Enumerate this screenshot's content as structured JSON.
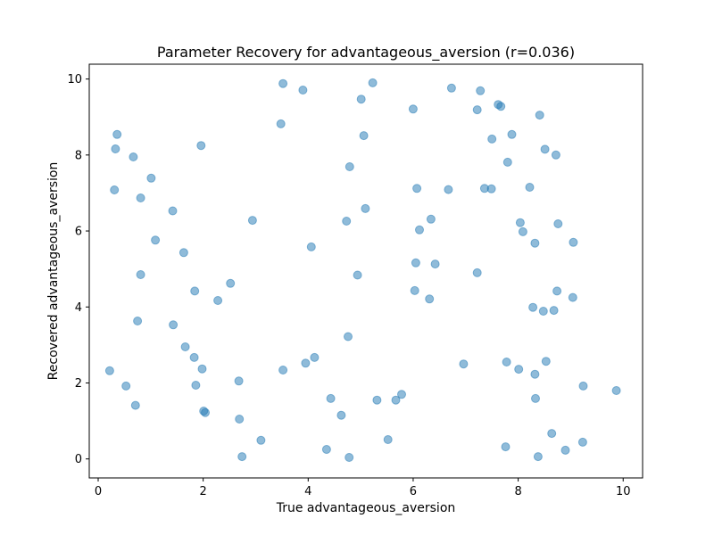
{
  "chart_data": {
    "type": "scatter",
    "title": "Parameter Recovery for advantageous_aversion (r=0.036)",
    "xlabel": "True advantageous_aversion",
    "ylabel": "Recovered advantageous_aversion",
    "xlim": [
      -0.17,
      10.37
    ],
    "ylim": [
      -0.5,
      10.39
    ],
    "xticks": [
      0,
      2,
      4,
      6,
      8,
      10
    ],
    "yticks": [
      0,
      2,
      4,
      6,
      8,
      10
    ],
    "grid": false,
    "marker_color": "#1f77b4",
    "marker_alpha": 0.5,
    "points": [
      [
        0.22,
        2.32
      ],
      [
        0.31,
        7.08
      ],
      [
        0.33,
        8.16
      ],
      [
        0.36,
        8.54
      ],
      [
        0.53,
        1.92
      ],
      [
        0.67,
        7.95
      ],
      [
        0.71,
        1.41
      ],
      [
        0.75,
        3.63
      ],
      [
        0.81,
        4.85
      ],
      [
        0.81,
        6.87
      ],
      [
        1.01,
        7.39
      ],
      [
        1.09,
        5.76
      ],
      [
        1.42,
        6.53
      ],
      [
        1.43,
        3.53
      ],
      [
        1.63,
        5.43
      ],
      [
        1.66,
        2.95
      ],
      [
        1.83,
        2.67
      ],
      [
        1.84,
        4.42
      ],
      [
        1.86,
        1.94
      ],
      [
        1.96,
        8.25
      ],
      [
        1.98,
        2.37
      ],
      [
        2.01,
        1.26
      ],
      [
        2.04,
        1.22
      ],
      [
        2.28,
        4.17
      ],
      [
        2.52,
        4.62
      ],
      [
        2.68,
        2.05
      ],
      [
        2.69,
        1.05
      ],
      [
        2.74,
        0.06
      ],
      [
        2.94,
        6.28
      ],
      [
        3.1,
        0.49
      ],
      [
        3.48,
        8.82
      ],
      [
        3.52,
        2.34
      ],
      [
        3.52,
        9.88
      ],
      [
        3.9,
        9.71
      ],
      [
        3.95,
        2.52
      ],
      [
        4.06,
        5.58
      ],
      [
        4.12,
        2.67
      ],
      [
        4.35,
        0.25
      ],
      [
        4.43,
        1.59
      ],
      [
        4.63,
        1.15
      ],
      [
        4.73,
        6.26
      ],
      [
        4.76,
        3.22
      ],
      [
        4.78,
        0.04
      ],
      [
        4.79,
        7.69
      ],
      [
        4.94,
        4.84
      ],
      [
        5.01,
        9.47
      ],
      [
        5.06,
        8.51
      ],
      [
        5.09,
        6.59
      ],
      [
        5.23,
        9.9
      ],
      [
        5.31,
        1.55
      ],
      [
        5.52,
        0.51
      ],
      [
        5.67,
        1.55
      ],
      [
        5.78,
        1.7
      ],
      [
        6.0,
        9.21
      ],
      [
        6.03,
        4.43
      ],
      [
        6.05,
        5.16
      ],
      [
        6.07,
        7.12
      ],
      [
        6.12,
        6.03
      ],
      [
        6.31,
        4.21
      ],
      [
        6.34,
        6.31
      ],
      [
        6.42,
        5.13
      ],
      [
        6.67,
        7.09
      ],
      [
        6.73,
        9.76
      ],
      [
        6.96,
        2.5
      ],
      [
        7.22,
        4.9
      ],
      [
        7.22,
        9.19
      ],
      [
        7.28,
        9.69
      ],
      [
        7.36,
        7.12
      ],
      [
        7.49,
        7.11
      ],
      [
        7.5,
        8.42
      ],
      [
        7.62,
        9.33
      ],
      [
        7.67,
        9.28
      ],
      [
        7.76,
        0.32
      ],
      [
        7.78,
        2.55
      ],
      [
        7.8,
        7.81
      ],
      [
        7.88,
        8.54
      ],
      [
        8.01,
        2.36
      ],
      [
        8.04,
        6.22
      ],
      [
        8.09,
        5.98
      ],
      [
        8.22,
        7.15
      ],
      [
        8.28,
        3.99
      ],
      [
        8.32,
        5.68
      ],
      [
        8.32,
        2.23
      ],
      [
        8.33,
        1.59
      ],
      [
        8.38,
        0.06
      ],
      [
        8.41,
        9.05
      ],
      [
        8.48,
        3.89
      ],
      [
        8.51,
        8.15
      ],
      [
        8.53,
        2.57
      ],
      [
        8.64,
        0.67
      ],
      [
        8.68,
        3.91
      ],
      [
        8.72,
        8.0
      ],
      [
        8.74,
        4.42
      ],
      [
        8.76,
        6.19
      ],
      [
        8.9,
        0.23
      ],
      [
        9.04,
        4.25
      ],
      [
        9.05,
        5.7
      ],
      [
        9.23,
        0.44
      ],
      [
        9.24,
        1.92
      ],
      [
        9.87,
        1.8
      ]
    ]
  }
}
